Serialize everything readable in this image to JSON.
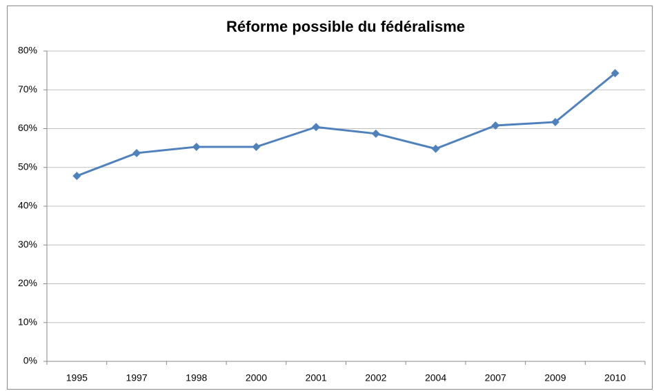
{
  "chart_data": {
    "type": "line",
    "title": "Réforme possible du fédéralisme",
    "categories": [
      "1995",
      "1997",
      "1998",
      "2000",
      "2001",
      "2002",
      "2004",
      "2007",
      "2009",
      "2010"
    ],
    "series": [
      {
        "color": "#4f81bd",
        "values": [
          47.8,
          53.7,
          55.3,
          55.3,
          60.4,
          58.7,
          54.8,
          60.8,
          61.7,
          74.3
        ]
      }
    ],
    "ylim": [
      0,
      80
    ],
    "yticks": [
      {
        "value": 0,
        "label": "0%"
      },
      {
        "value": 10,
        "label": "10%"
      },
      {
        "value": 20,
        "label": "20%"
      },
      {
        "value": 30,
        "label": "30%"
      },
      {
        "value": 40,
        "label": "40%"
      },
      {
        "value": 50,
        "label": "50%"
      },
      {
        "value": 60,
        "label": "60%"
      },
      {
        "value": 70,
        "label": "70%"
      },
      {
        "value": 80,
        "label": "80%"
      }
    ],
    "grid": true
  }
}
